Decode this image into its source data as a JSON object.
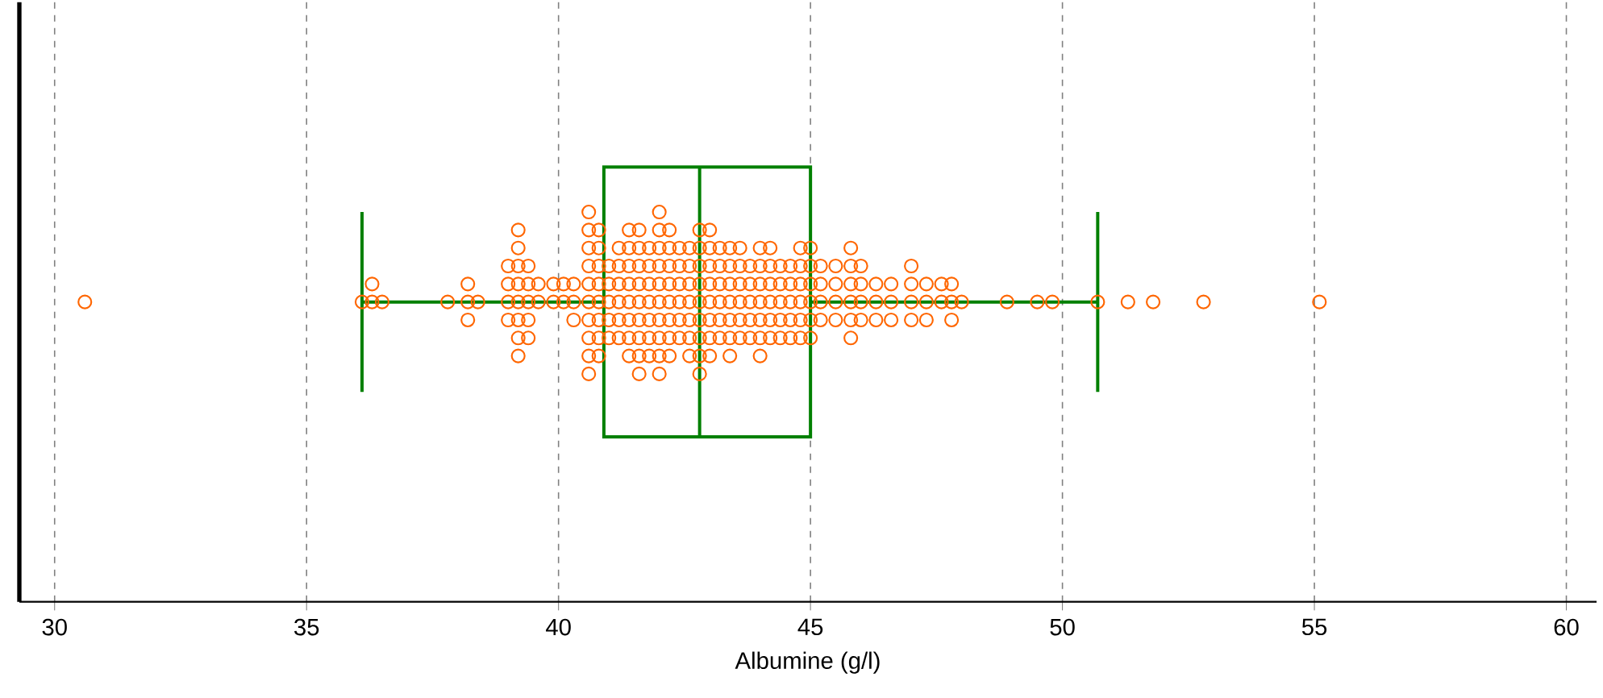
{
  "chart_data": {
    "type": "box",
    "orientation": "horizontal",
    "categories": [
      null
    ],
    "boxes": [
      {
        "low": 36.1,
        "q1": 40.9,
        "median": 42.8,
        "q3": 45.0,
        "high": 50.7
      }
    ],
    "color": "#008000",
    "series": [
      {
        "type": "scatter",
        "color": "#ff6600",
        "x": [
          null,
          null,
          null,
          null,
          null,
          null,
          null,
          null,
          null,
          null,
          null,
          null,
          null,
          null,
          null,
          null,
          null,
          null,
          null,
          null,
          null,
          null,
          null,
          null,
          null,
          null,
          null,
          null,
          null,
          null,
          null,
          null,
          null,
          null,
          null,
          null,
          null,
          null,
          null,
          null,
          null,
          null,
          null,
          null,
          null,
          null,
          null,
          null,
          null,
          null,
          null,
          null,
          null,
          null,
          null,
          null,
          null,
          null,
          null,
          null,
          null,
          null,
          null,
          null,
          null,
          null,
          null,
          null,
          null,
          null,
          null,
          null,
          null,
          null,
          null,
          null,
          null,
          null,
          null,
          null,
          null,
          null,
          null,
          null,
          null,
          null,
          null,
          null,
          null,
          null,
          null,
          null,
          null,
          null,
          null,
          null,
          null,
          null,
          null,
          null,
          null,
          null,
          null,
          null,
          null,
          null,
          null,
          null,
          null,
          null,
          null,
          null,
          null,
          null,
          null,
          null,
          null,
          null,
          null,
          null,
          null,
          null,
          null,
          null,
          null,
          null,
          null,
          null,
          null,
          null,
          null,
          null,
          null,
          null,
          null,
          null,
          null,
          null,
          null,
          null,
          null,
          null,
          null,
          null,
          null,
          null,
          null,
          null,
          null,
          null,
          null,
          null,
          null,
          null,
          null,
          null,
          null,
          null,
          null,
          null,
          null,
          null,
          null,
          null,
          null,
          null,
          null,
          null,
          null,
          null,
          null,
          null,
          null,
          null,
          null,
          null,
          null,
          null,
          null,
          null,
          null,
          null,
          null,
          null,
          null,
          null,
          null,
          null,
          null,
          null,
          null,
          null,
          null,
          null,
          null,
          null,
          null,
          null,
          null,
          null,
          null,
          null,
          null,
          null,
          null,
          null,
          null,
          null,
          null,
          null,
          null,
          null,
          null,
          null,
          null,
          null,
          null,
          null,
          null,
          null,
          null,
          null,
          null,
          null,
          null,
          null,
          null,
          null,
          null,
          null,
          null,
          null,
          null,
          null,
          null,
          null,
          null,
          null,
          null,
          null,
          null
        ],
        "values": [
          30.6,
          36.1,
          36.3,
          36.3,
          36.5,
          37.8,
          38.2,
          38.2,
          38.2,
          38.4,
          39.0,
          39.0,
          39.0,
          39.0,
          39.2,
          39.2,
          39.2,
          39.2,
          39.2,
          39.2,
          39.2,
          39.2,
          39.4,
          39.4,
          39.4,
          39.4,
          39.4,
          39.6,
          39.6,
          39.9,
          39.9,
          40.1,
          40.1,
          40.3,
          40.3,
          40.3,
          40.6,
          40.6,
          40.6,
          40.6,
          40.6,
          40.6,
          40.6,
          40.6,
          40.6,
          40.6,
          40.8,
          40.8,
          40.8,
          40.8,
          40.8,
          40.8,
          40.8,
          40.8,
          41.0,
          41.0,
          41.0,
          41.0,
          41.0,
          41.2,
          41.2,
          41.2,
          41.2,
          41.2,
          41.2,
          41.4,
          41.4,
          41.4,
          41.4,
          41.4,
          41.4,
          41.4,
          41.4,
          41.6,
          41.6,
          41.6,
          41.6,
          41.6,
          41.6,
          41.6,
          41.6,
          41.6,
          41.8,
          41.8,
          41.8,
          41.8,
          41.8,
          41.8,
          41.8,
          42.0,
          42.0,
          42.0,
          42.0,
          42.0,
          42.0,
          42.0,
          42.0,
          42.0,
          42.0,
          42.2,
          42.2,
          42.2,
          42.2,
          42.2,
          42.2,
          42.2,
          42.2,
          42.4,
          42.4,
          42.4,
          42.4,
          42.4,
          42.4,
          42.6,
          42.6,
          42.6,
          42.6,
          42.6,
          42.6,
          42.6,
          42.8,
          42.8,
          42.8,
          42.8,
          42.8,
          42.8,
          42.8,
          42.8,
          42.8,
          43.0,
          43.0,
          43.0,
          43.0,
          43.0,
          43.0,
          43.0,
          43.0,
          43.2,
          43.2,
          43.2,
          43.2,
          43.2,
          43.2,
          43.4,
          43.4,
          43.4,
          43.4,
          43.4,
          43.4,
          43.4,
          43.6,
          43.6,
          43.6,
          43.6,
          43.6,
          43.6,
          43.8,
          43.8,
          43.8,
          43.8,
          43.8,
          44.0,
          44.0,
          44.0,
          44.0,
          44.0,
          44.0,
          44.0,
          44.2,
          44.2,
          44.2,
          44.2,
          44.2,
          44.2,
          44.4,
          44.4,
          44.4,
          44.4,
          44.4,
          44.6,
          44.6,
          44.6,
          44.6,
          44.6,
          44.8,
          44.8,
          44.8,
          44.8,
          44.8,
          44.8,
          45.0,
          45.0,
          45.0,
          45.0,
          45.0,
          45.0,
          45.2,
          45.2,
          45.2,
          45.2,
          45.5,
          45.5,
          45.5,
          45.5,
          45.8,
          45.8,
          45.8,
          45.8,
          45.8,
          45.8,
          46.0,
          46.0,
          46.0,
          46.0,
          46.3,
          46.3,
          46.3,
          46.6,
          46.6,
          46.6,
          47.0,
          47.0,
          47.0,
          47.0,
          47.3,
          47.3,
          47.3,
          47.6,
          47.6,
          47.8,
          47.8,
          47.8,
          48.0,
          48.9,
          49.5,
          49.8,
          50.7,
          51.3,
          51.8,
          52.8,
          55.1
        ]
      }
    ],
    "xlim": [
      29.3,
      60.6
    ],
    "xticks": [
      30,
      35,
      40,
      45,
      50,
      55,
      60
    ],
    "xlabel": "Albumine (g/l)",
    "grid": "x",
    "tick_labels": "x",
    "marker": "circle"
  }
}
